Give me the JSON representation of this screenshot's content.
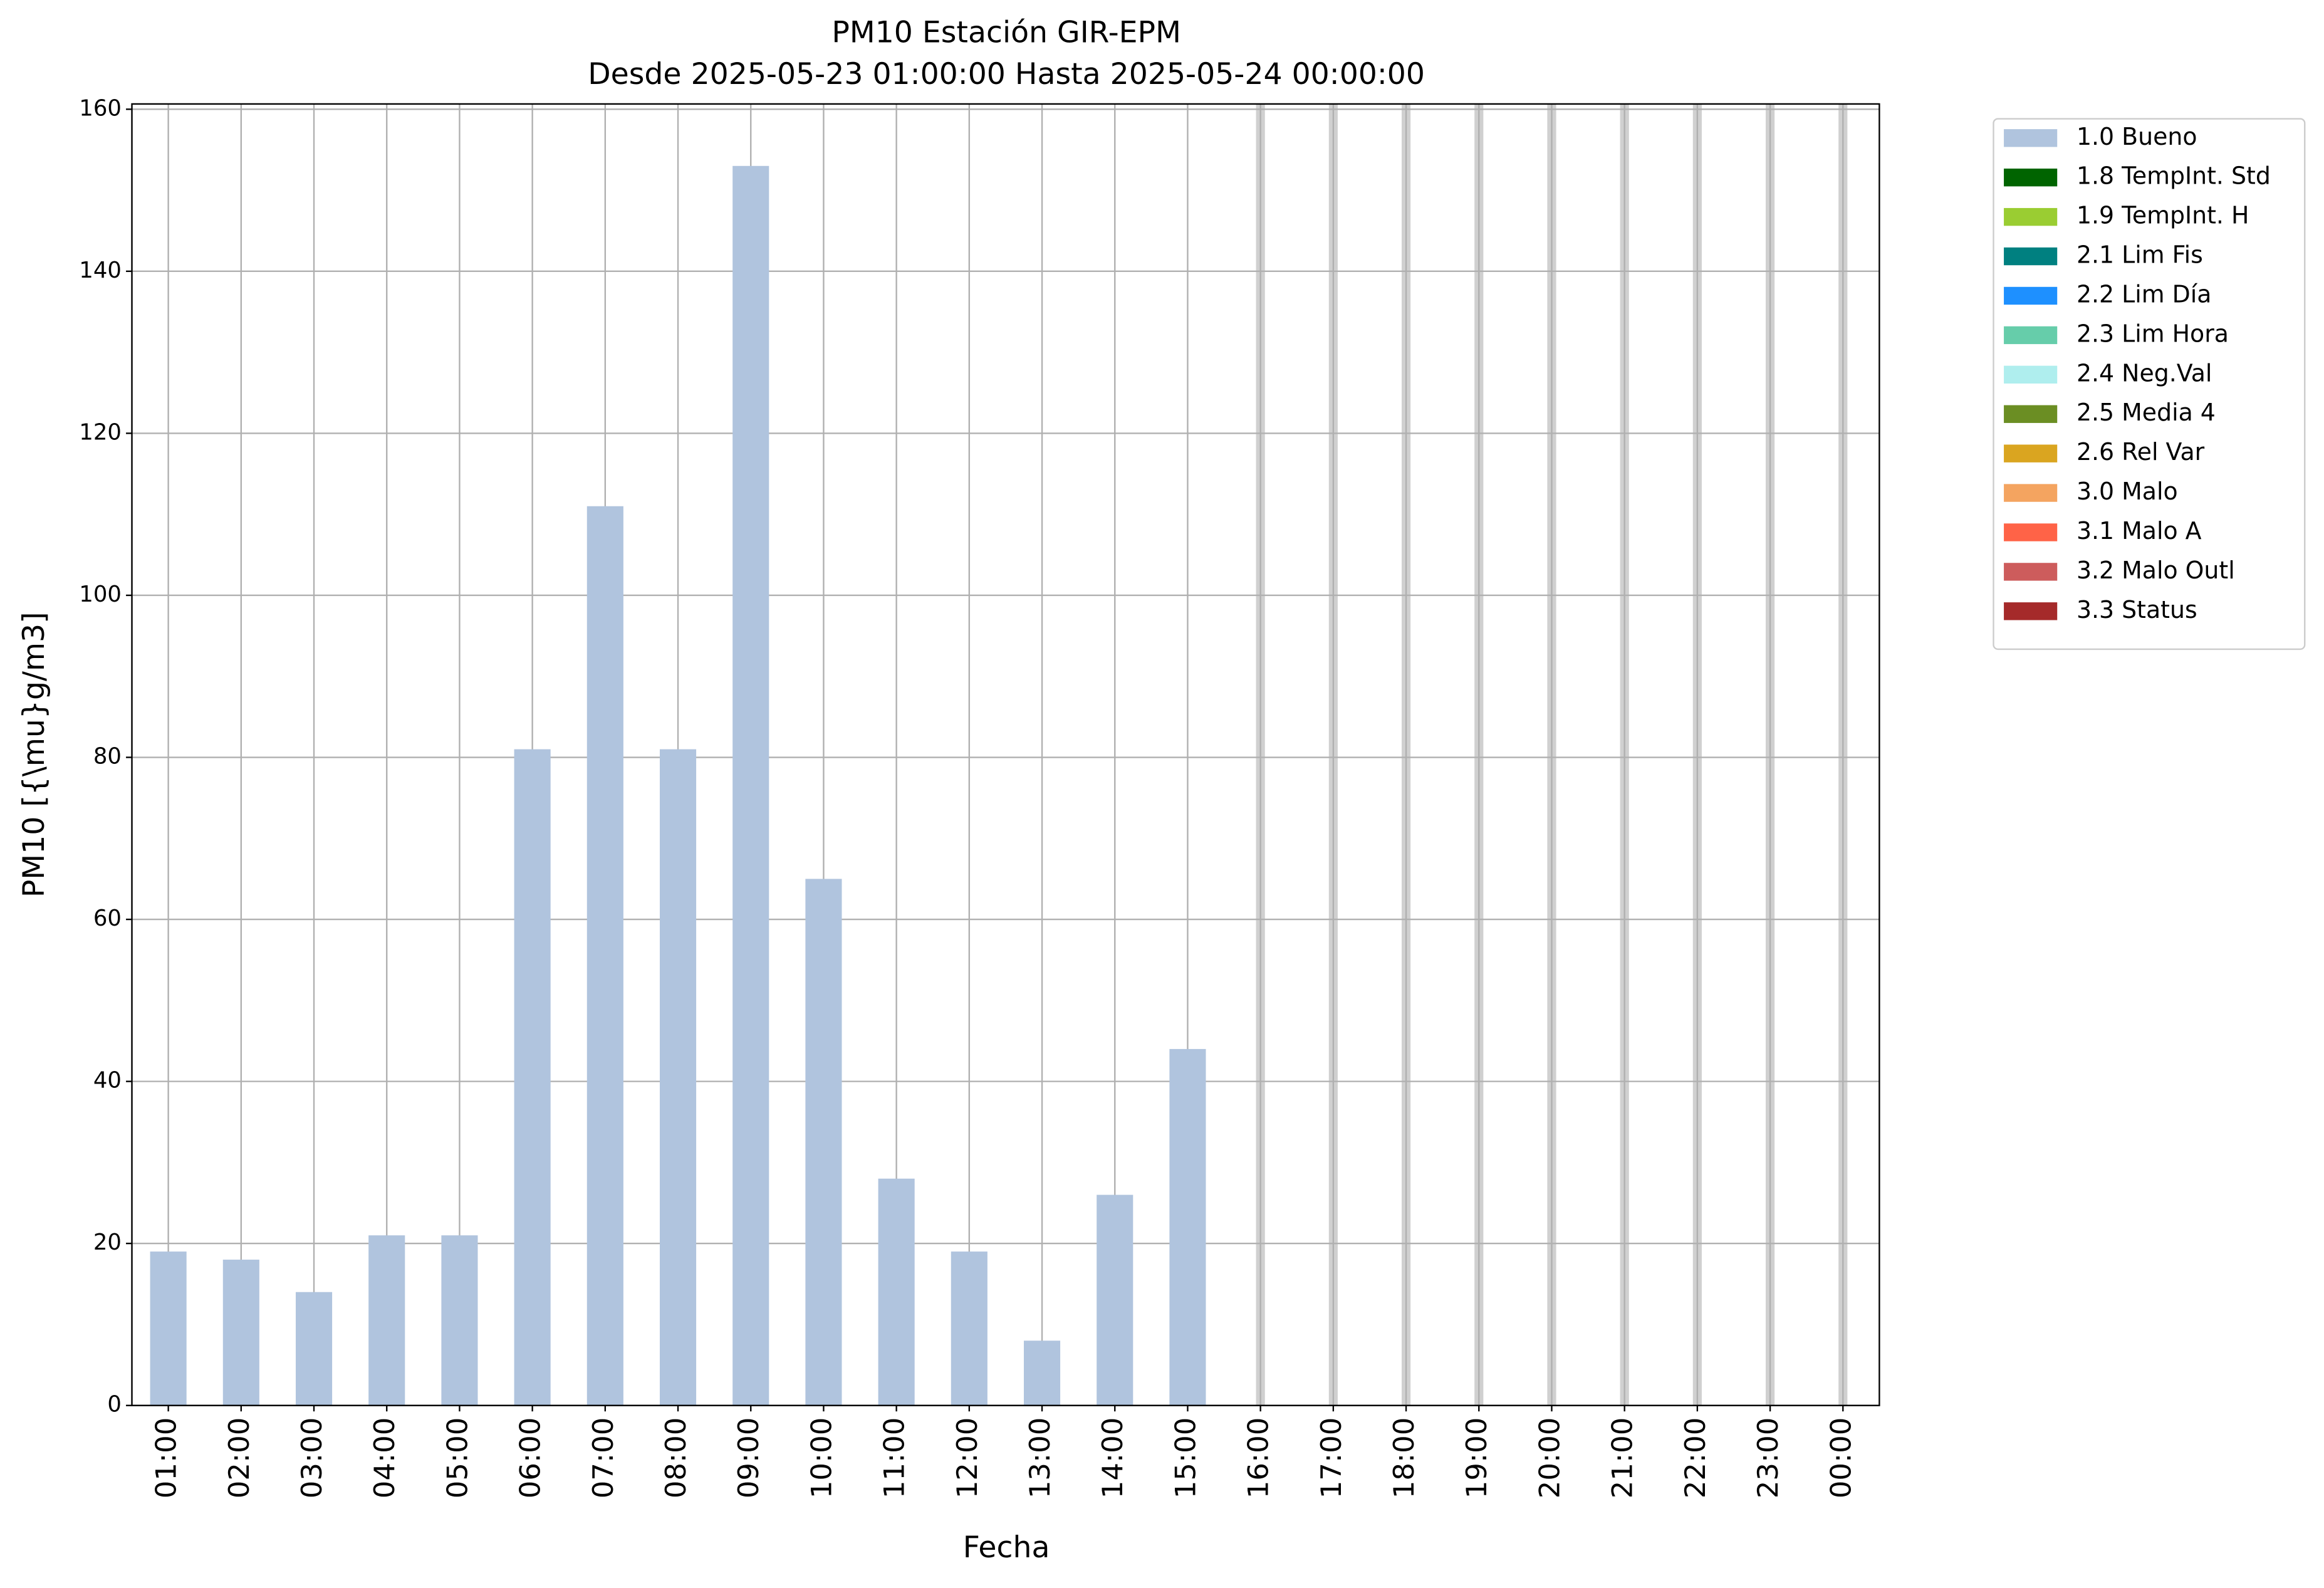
{
  "chart_data": {
    "type": "bar",
    "stacked": true,
    "title": "PM10 Estación GIR-EPM",
    "subtitle": "Desde 2025-05-23 01:00:00 Hasta 2025-05-24 00:00:00",
    "x_label": "Fecha",
    "y_label": "PM10 [{\\mu}g/m3]",
    "categories": [
      "01:00",
      "02:00",
      "03:00",
      "04:00",
      "05:00",
      "06:00",
      "07:00",
      "08:00",
      "09:00",
      "10:00",
      "11:00",
      "12:00",
      "13:00",
      "14:00",
      "15:00",
      "16:00",
      "17:00",
      "18:00",
      "19:00",
      "20:00",
      "21:00",
      "22:00",
      "23:00",
      "00:00"
    ],
    "series": [
      {
        "name": "1.0 Bueno",
        "color": "#b0c4de",
        "values": [
          19,
          18,
          14,
          21,
          21,
          81,
          111,
          81,
          153,
          65,
          28,
          19,
          8,
          26,
          44,
          null,
          null,
          null,
          null,
          null,
          null,
          null,
          null,
          null
        ]
      },
      {
        "name": "1.8 TempInt. Std",
        "color": "#006400",
        "values": [
          null,
          null,
          null,
          null,
          null,
          null,
          null,
          null,
          null,
          null,
          null,
          null,
          null,
          null,
          null,
          null,
          null,
          null,
          null,
          null,
          null,
          null,
          null,
          null
        ]
      },
      {
        "name": "1.9 TempInt. H",
        "color": "#9acd32",
        "values": [
          null,
          null,
          null,
          null,
          null,
          null,
          null,
          null,
          null,
          null,
          null,
          null,
          null,
          null,
          null,
          null,
          null,
          null,
          null,
          null,
          null,
          null,
          null,
          null
        ]
      },
      {
        "name": "2.1 Lim Fis",
        "color": "#008080",
        "values": [
          null,
          null,
          null,
          null,
          null,
          null,
          null,
          null,
          null,
          null,
          null,
          null,
          null,
          null,
          null,
          null,
          null,
          null,
          null,
          null,
          null,
          null,
          null,
          null
        ]
      },
      {
        "name": "2.2 Lim Día",
        "color": "#1e90ff",
        "values": [
          null,
          null,
          null,
          null,
          null,
          null,
          null,
          null,
          null,
          null,
          null,
          null,
          null,
          null,
          null,
          null,
          null,
          null,
          null,
          null,
          null,
          null,
          null,
          null
        ]
      },
      {
        "name": "2.3 Lim Hora",
        "color": "#66cdaa",
        "values": [
          null,
          null,
          null,
          null,
          null,
          null,
          null,
          null,
          null,
          null,
          null,
          null,
          null,
          null,
          null,
          null,
          null,
          null,
          null,
          null,
          null,
          null,
          null,
          null
        ]
      },
      {
        "name": "2.4 Neg.Val",
        "color": "#afeeee",
        "values": [
          null,
          null,
          null,
          null,
          null,
          null,
          null,
          null,
          null,
          null,
          null,
          null,
          null,
          null,
          null,
          null,
          null,
          null,
          null,
          null,
          null,
          null,
          null,
          null
        ]
      },
      {
        "name": "2.5 Media 4",
        "color": "#6b8e23",
        "values": [
          null,
          null,
          null,
          null,
          null,
          null,
          null,
          null,
          null,
          null,
          null,
          null,
          null,
          null,
          null,
          null,
          null,
          null,
          null,
          null,
          null,
          null,
          null,
          null
        ]
      },
      {
        "name": "2.6 Rel Var",
        "color": "#daa520",
        "values": [
          null,
          null,
          null,
          null,
          null,
          null,
          null,
          null,
          null,
          null,
          null,
          null,
          null,
          null,
          null,
          null,
          null,
          null,
          null,
          null,
          null,
          null,
          null,
          null
        ]
      },
      {
        "name": "3.0 Malo",
        "color": "#f4a460",
        "values": [
          null,
          null,
          null,
          null,
          null,
          null,
          null,
          null,
          null,
          null,
          null,
          null,
          null,
          null,
          null,
          null,
          null,
          null,
          null,
          null,
          null,
          null,
          null,
          null
        ]
      },
      {
        "name": "3.1 Malo A",
        "color": "#ff6347",
        "values": [
          null,
          null,
          null,
          null,
          null,
          null,
          null,
          null,
          null,
          null,
          null,
          null,
          null,
          null,
          null,
          null,
          null,
          null,
          null,
          null,
          null,
          null,
          null,
          null
        ]
      },
      {
        "name": "3.2 Malo Outl",
        "color": "#cd5c5c",
        "values": [
          null,
          null,
          null,
          null,
          null,
          null,
          null,
          null,
          null,
          null,
          null,
          null,
          null,
          null,
          null,
          null,
          null,
          null,
          null,
          null,
          null,
          null,
          null,
          null
        ]
      },
      {
        "name": "3.3 Status",
        "color": "#a52a2a",
        "values": [
          null,
          null,
          null,
          null,
          null,
          null,
          null,
          null,
          null,
          null,
          null,
          null,
          null,
          null,
          null,
          null,
          null,
          null,
          null,
          null,
          null,
          null,
          null,
          null
        ]
      }
    ],
    "ylim": [
      0,
      160.65
    ],
    "yticks": [
      0,
      20,
      40,
      60,
      80,
      100,
      120,
      140,
      160
    ],
    "grid": true,
    "legend": "outside-upper-right"
  }
}
